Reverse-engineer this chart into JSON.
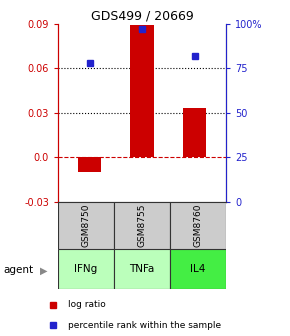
{
  "title": "GDS499 / 20669",
  "categories": [
    "IFNg",
    "TNFa",
    "IL4"
  ],
  "gsm_labels": [
    "GSM8750",
    "GSM8755",
    "GSM8760"
  ],
  "log_ratio": [
    -0.01,
    0.089,
    0.033
  ],
  "percentile_rank": [
    78,
    97,
    82
  ],
  "bar_color": "#cc0000",
  "dot_color": "#2222cc",
  "ylim_left": [
    -0.03,
    0.09
  ],
  "ylim_right": [
    0,
    100
  ],
  "yticks_left": [
    -0.03,
    0.0,
    0.03,
    0.06,
    0.09
  ],
  "yticks_right": [
    0,
    25,
    50,
    75,
    100
  ],
  "ytick_labels_right": [
    "0",
    "25",
    "50",
    "75",
    "100%"
  ],
  "hline_y": [
    0.06,
    0.03
  ],
  "zero_line_color": "#cc0000",
  "dotted_line_color": "black",
  "gsm_color": "#cccccc",
  "agent_colors": [
    "#bbffbb",
    "#bbffbb",
    "#44ee44"
  ],
  "box_border_color": "#333333",
  "agent_label": "agent",
  "legend_log_ratio": "log ratio",
  "legend_percentile": "percentile rank within the sample",
  "left_axis_color": "#cc0000",
  "right_axis_color": "#2222cc",
  "bar_width": 0.45
}
